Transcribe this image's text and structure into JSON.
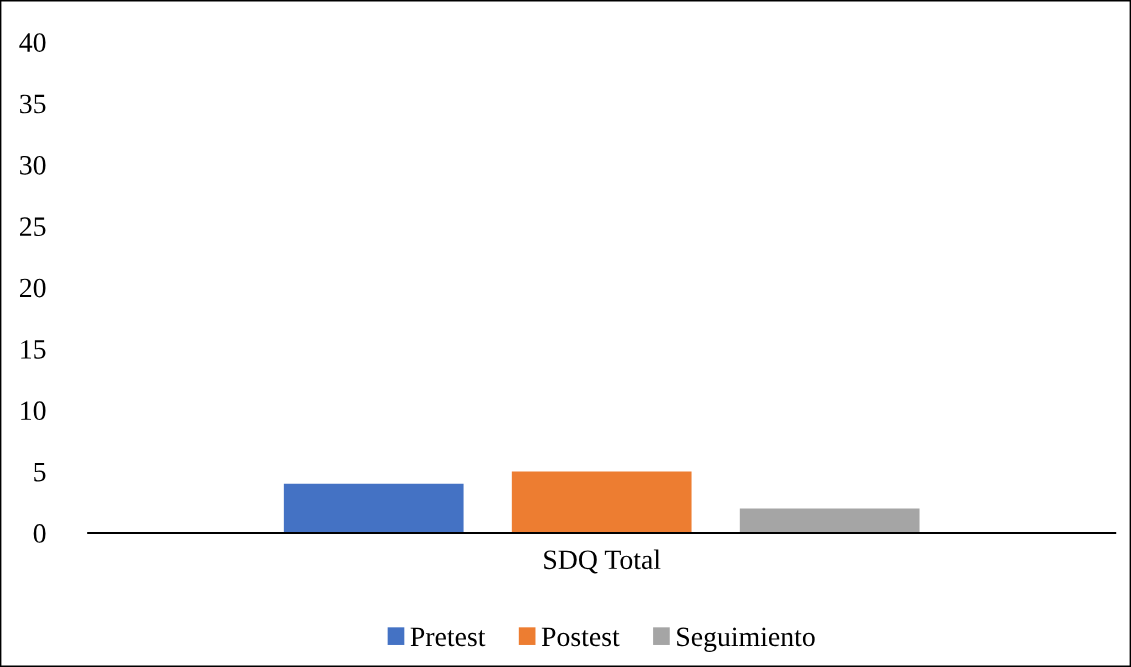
{
  "chart_data": {
    "type": "bar",
    "categories": [
      "SDQ Total"
    ],
    "series": [
      {
        "name": "Pretest",
        "color": "#4472c4",
        "values": [
          4
        ]
      },
      {
        "name": "Postest",
        "color": "#ed7d31",
        "values": [
          5
        ]
      },
      {
        "name": "Seguimiento",
        "color": "#a5a5a5",
        "values": [
          2
        ]
      }
    ],
    "ylim": [
      0,
      40
    ],
    "yticks": [
      0,
      5,
      10,
      15,
      20,
      25,
      30,
      35,
      40
    ],
    "grid": false,
    "legend": "bottom"
  }
}
